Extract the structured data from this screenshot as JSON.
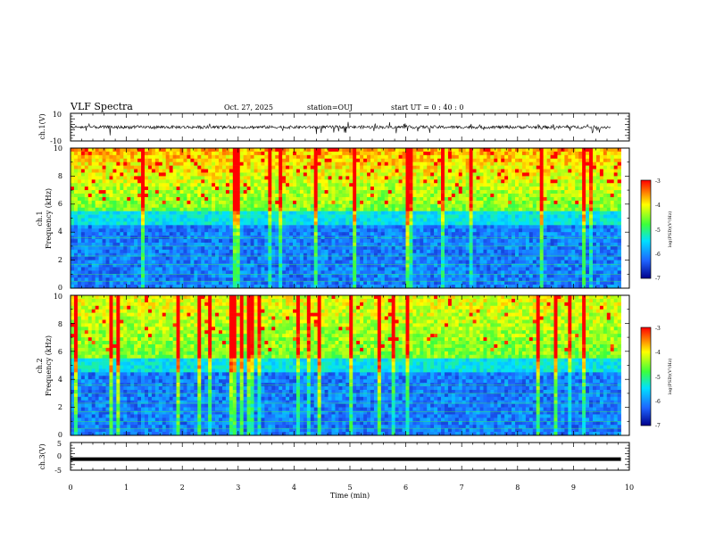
{
  "header": {
    "title": "VLF Spectra",
    "date": "Oct. 27, 2025",
    "station": "station=OUJ",
    "start": "start  UT =   0 : 40 : 0"
  },
  "chart_data": [
    {
      "type": "line",
      "name": "ch1-waveform",
      "ylabel": "ch.1(V)",
      "ylim": [
        -10,
        10
      ],
      "y_ticks": [
        "10",
        "-10"
      ],
      "xlim": [
        0,
        10
      ],
      "baseline": 0
    },
    {
      "type": "heatmap",
      "name": "ch1-spectrogram",
      "ylabel": "Frequency (kHz)",
      "channel_label": "ch.1",
      "ylim": [
        0,
        10
      ],
      "y_ticks": [
        "0",
        "2",
        "4",
        "6",
        "8",
        "10"
      ],
      "xlim": [
        0,
        9.85
      ],
      "colorbar": {
        "label": "log(PSD)(V²/Hz)",
        "ticks": [
          "-3",
          "-4",
          "-5",
          "-6",
          "-7"
        ],
        "range": [
          -7,
          -3
        ]
      }
    },
    {
      "type": "heatmap",
      "name": "ch2-spectrogram",
      "ylabel": "Frequency (kHz)",
      "channel_label": "ch.2",
      "ylim": [
        0,
        10
      ],
      "y_ticks": [
        "0",
        "2",
        "4",
        "6",
        "8",
        "10"
      ],
      "xlim": [
        0,
        9.85
      ],
      "colorbar": {
        "label": "log(PSD)(V²/Hz)",
        "ticks": [
          "-3",
          "-4",
          "-5",
          "-6",
          "-7"
        ],
        "range": [
          -7,
          -3
        ]
      }
    },
    {
      "type": "line",
      "name": "ch3-level",
      "ylabel": "ch.3(V)",
      "ylim": [
        -5,
        5
      ],
      "y_ticks": [
        "5",
        "0",
        "-5"
      ],
      "xlim": [
        0,
        9.85
      ],
      "values": [
        -1.0,
        -1.0
      ]
    }
  ],
  "x_axis": {
    "label": "Time  (min)",
    "ticks": [
      "0",
      "1",
      "2",
      "3",
      "4",
      "5",
      "6",
      "7",
      "8",
      "9",
      "10"
    ],
    "range": [
      0,
      10
    ]
  },
  "colors": {
    "low": "#00008b",
    "mid_blue": "#1e64ff",
    "cyan": "#00e0ff",
    "green": "#3cff3c",
    "yellow": "#ffff00",
    "red": "#ff0000"
  }
}
